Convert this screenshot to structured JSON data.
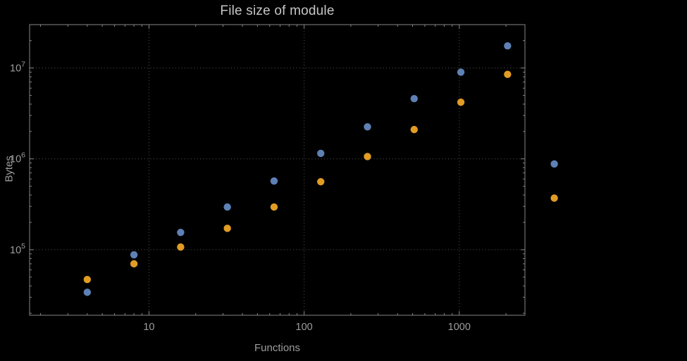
{
  "style": {
    "background": "#000000",
    "frame_color": "#868686",
    "grid_color": "#585858",
    "tick_text_color": "#9d9d9d",
    "title_color": "#c6c6c6"
  },
  "chart_data": {
    "type": "scatter",
    "title": "File size of module",
    "xlabel": "Functions",
    "ylabel": "Bytes",
    "x_scale": "log",
    "y_scale": "log",
    "grid": "dotted-major",
    "legend": "none",
    "x_ticks": [
      10,
      100,
      1000
    ],
    "y_ticks": [
      100000,
      1000000,
      10000000
    ],
    "xlim": [
      1.7,
      2650
    ],
    "ylim": [
      19000,
      30000000
    ],
    "x": [
      4,
      8,
      16,
      32,
      64,
      128,
      256,
      512,
      1024,
      2048,
      4096
    ],
    "series": [
      {
        "name": "blue",
        "color": "#5e81b5",
        "values": [
          34000,
          88000,
          155000,
          295000,
          570000,
          1150000,
          2250000,
          4600000,
          9000000,
          17500000,
          880000
        ]
      },
      {
        "name": "orange",
        "color": "#e19c24",
        "values": [
          47000,
          70000,
          107000,
          172000,
          295000,
          560000,
          1060000,
          2100000,
          4200000,
          8500000,
          370000
        ]
      }
    ]
  }
}
